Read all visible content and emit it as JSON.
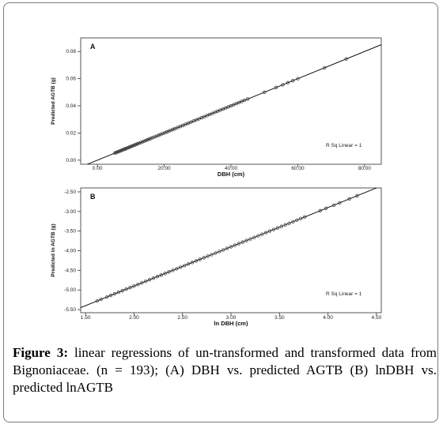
{
  "figure": {
    "label": "Figure 3:",
    "text": "linear regressions of un-transformed and transformed data from Bignoniaceae. (n = 193); (A) DBH vs. predicted AGTB (B) lnDBH vs. predicted lnAGTB"
  },
  "chart_data": [
    {
      "type": "scatter",
      "panel_label": "A",
      "xlabel": "DBH (cm)",
      "ylabel": "Predicted AGTB (g)",
      "annotation": "R Sq Linear = 1",
      "xlim": [
        -5,
        85
      ],
      "ylim": [
        -0.003,
        0.09
      ],
      "xticks": [
        "0.00",
        "20.00",
        "40.00",
        "60.00",
        "80.00"
      ],
      "xtick_values": [
        0,
        20,
        40,
        60,
        80
      ],
      "yticks": [
        "0.08",
        "0.06",
        "0.04",
        "0.02",
        "0.00"
      ],
      "ytick_values": [
        0.08,
        0.06,
        0.04,
        0.02,
        0.0
      ],
      "fit_line": {
        "slope": 0.001,
        "intercept": 0.0
      },
      "points_x": [
        5.2,
        5.6,
        6.0,
        6.3,
        6.6,
        7.0,
        7.3,
        7.6,
        8.0,
        8.3,
        8.6,
        9.0,
        9.3,
        9.6,
        10.0,
        10.4,
        10.8,
        11.2,
        11.6,
        12.0,
        12.5,
        13.0,
        13.5,
        14.0,
        14.5,
        15.0,
        15.5,
        16.0,
        16.6,
        17.2,
        17.8,
        18.4,
        19.0,
        19.6,
        20.2,
        20.8,
        21.4,
        22.0,
        22.6,
        23.2,
        24.0,
        24.8,
        25.6,
        26.4,
        27.2,
        28.0,
        28.8,
        29.6,
        30.4,
        31.2,
        32.0,
        32.8,
        33.6,
        34.4,
        35.2,
        36.0,
        36.8,
        37.6,
        38.4,
        39.2,
        40.0,
        40.8,
        41.6,
        42.4,
        43.2,
        44.0,
        45.0,
        50.0,
        53.5,
        55.5,
        57.0,
        58.5,
        60.0,
        68.0,
        74.5
      ]
    },
    {
      "type": "scatter",
      "panel_label": "B",
      "xlabel": "ln DBH (cm)",
      "ylabel": "Predicted ln AGTB (g)",
      "annotation": "R Sq Linear = 1",
      "xlim": [
        1.45,
        4.55
      ],
      "ylim": [
        -5.58,
        -2.4
      ],
      "xticks": [
        "1.50",
        "2.00",
        "2.50",
        "3.00",
        "3.50",
        "4.00",
        "4.50"
      ],
      "xtick_values": [
        1.5,
        2.0,
        2.5,
        3.0,
        3.5,
        4.0,
        4.5
      ],
      "yticks": [
        "-2.50",
        "-3.00",
        "-3.50",
        "-4.00",
        "-4.50",
        "-5.00",
        "-5.50"
      ],
      "ytick_values": [
        -2.5,
        -3.0,
        -3.5,
        -4.0,
        -4.5,
        -5.0,
        -5.5
      ],
      "fit_line": {
        "slope": 1.0,
        "intercept": -6.9
      },
      "points_x": [
        1.62,
        1.66,
        1.72,
        1.76,
        1.8,
        1.84,
        1.88,
        1.92,
        1.96,
        2.0,
        2.04,
        2.08,
        2.12,
        2.16,
        2.2,
        2.24,
        2.28,
        2.32,
        2.36,
        2.4,
        2.44,
        2.48,
        2.52,
        2.56,
        2.6,
        2.64,
        2.68,
        2.72,
        2.76,
        2.8,
        2.84,
        2.88,
        2.92,
        2.96,
        3.0,
        3.04,
        3.08,
        3.12,
        3.16,
        3.2,
        3.24,
        3.28,
        3.32,
        3.36,
        3.4,
        3.44,
        3.48,
        3.52,
        3.56,
        3.6,
        3.64,
        3.68,
        3.72,
        3.76,
        3.92,
        3.98,
        4.06,
        4.12,
        4.22,
        4.3
      ]
    }
  ]
}
